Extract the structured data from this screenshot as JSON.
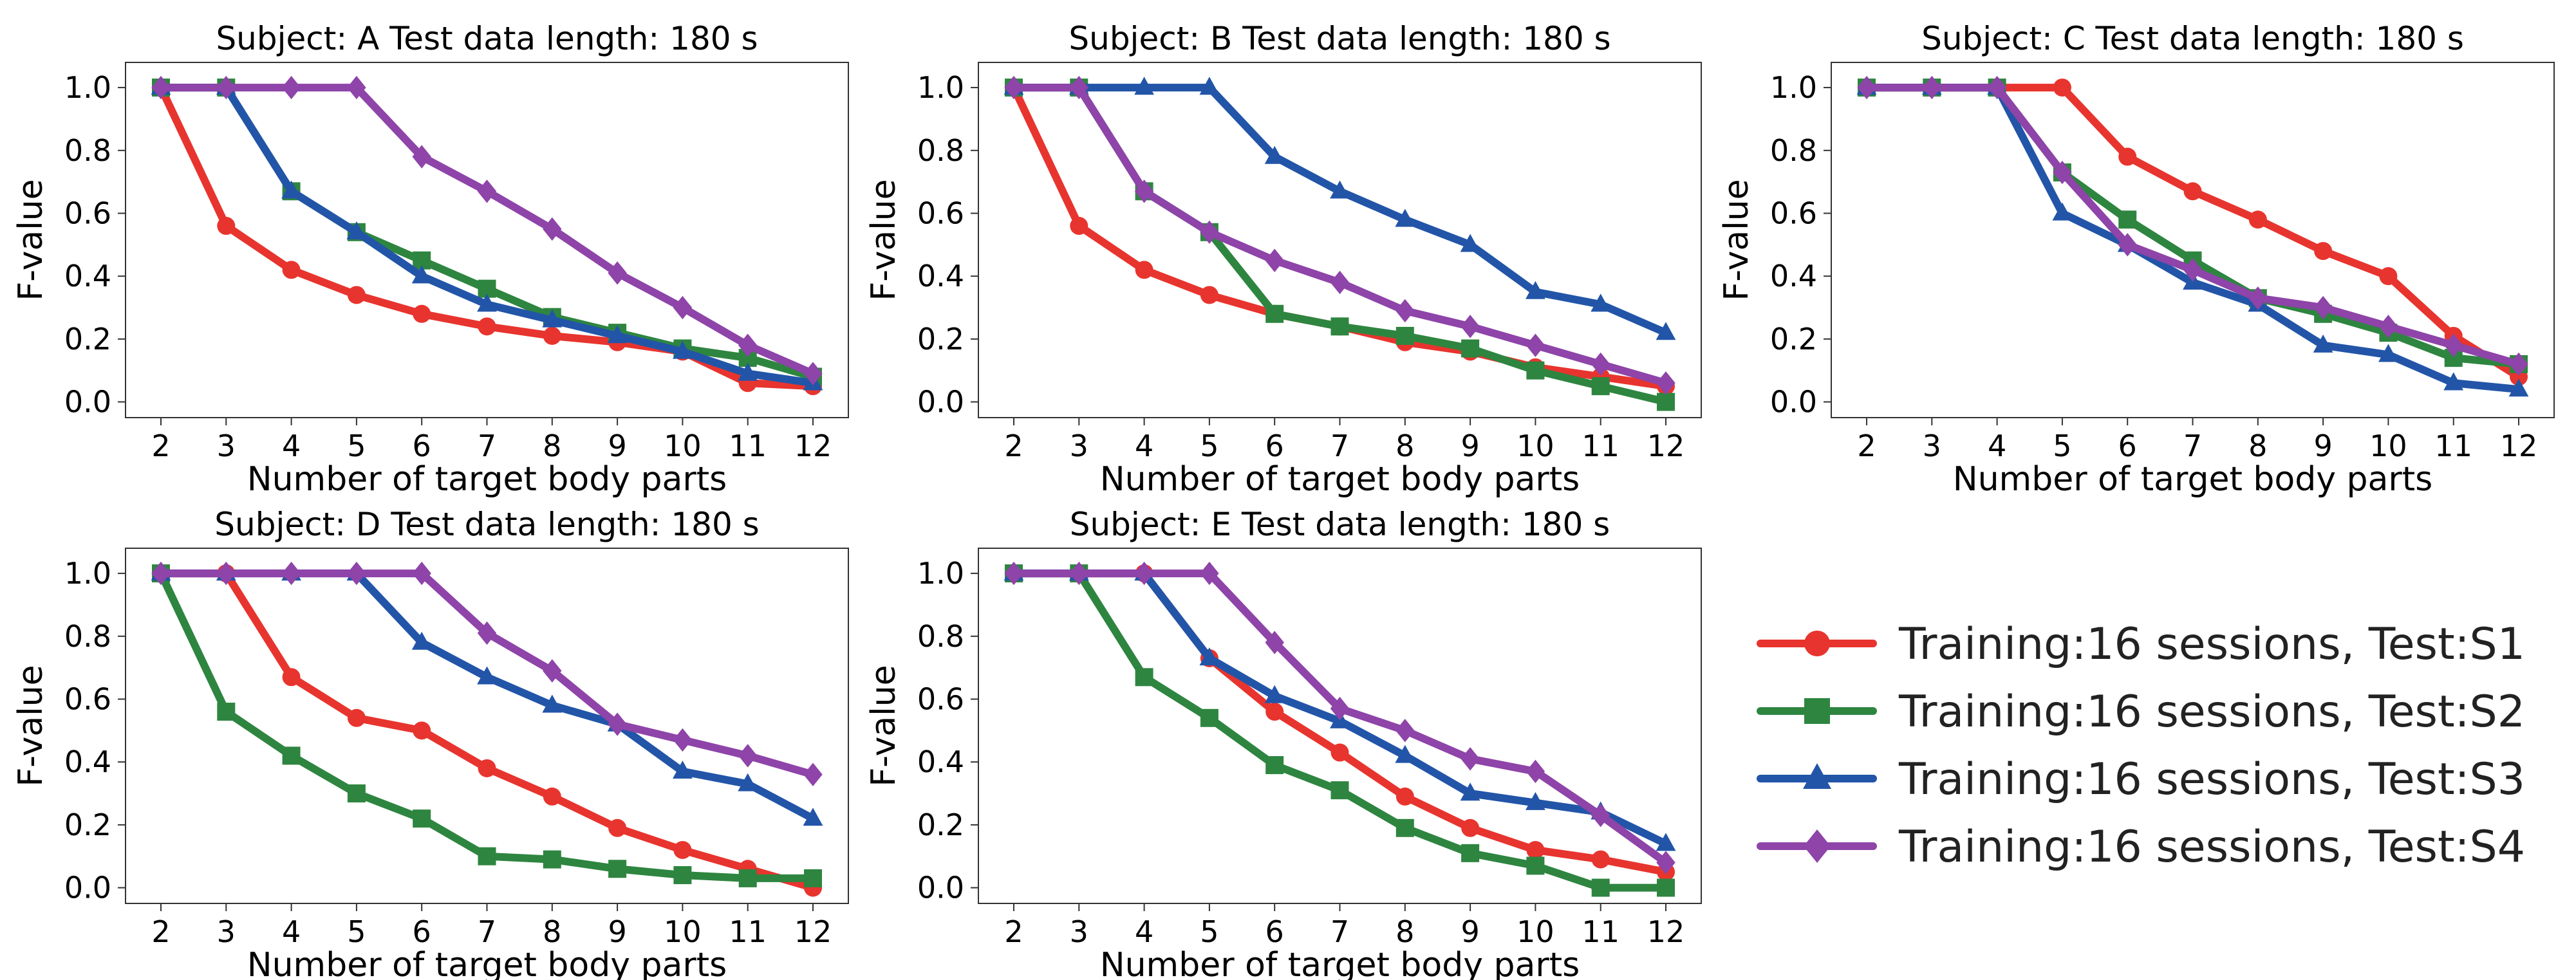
{
  "chart_data": [
    {
      "type": "line",
      "title": "Subject: A  Test data length: 180 s",
      "xlabel": "Number of target body parts",
      "ylabel": "F-value",
      "x": [
        2,
        3,
        4,
        5,
        6,
        7,
        8,
        9,
        10,
        11,
        12
      ],
      "ylim": [
        -0.05,
        1.08
      ],
      "yticks": [
        "0.0",
        "0.2",
        "0.4",
        "0.6",
        "0.8",
        "1.0"
      ],
      "xticks": [
        "2",
        "3",
        "4",
        "5",
        "6",
        "7",
        "8",
        "9",
        "10",
        "11",
        "12"
      ],
      "series": [
        {
          "name": "Training:16 sessions, Test:S1",
          "values": [
            1.0,
            0.56,
            0.42,
            0.34,
            0.28,
            0.24,
            0.21,
            0.19,
            0.16,
            0.06,
            0.05
          ]
        },
        {
          "name": "Training:16 sessions, Test:S2",
          "values": [
            1.0,
            1.0,
            0.67,
            0.54,
            0.45,
            0.36,
            0.27,
            0.22,
            0.17,
            0.14,
            0.08
          ]
        },
        {
          "name": "Training:16 sessions, Test:S3",
          "values": [
            1.0,
            1.0,
            0.67,
            0.54,
            0.4,
            0.31,
            0.26,
            0.21,
            0.16,
            0.09,
            0.06
          ]
        },
        {
          "name": "Training:16 sessions, Test:S4",
          "values": [
            1.0,
            1.0,
            1.0,
            1.0,
            0.78,
            0.67,
            0.55,
            0.41,
            0.3,
            0.18,
            0.09
          ]
        }
      ]
    },
    {
      "type": "line",
      "title": "Subject: B  Test data length: 180 s",
      "xlabel": "Number of target body parts",
      "ylabel": "F-value",
      "x": [
        2,
        3,
        4,
        5,
        6,
        7,
        8,
        9,
        10,
        11,
        12
      ],
      "ylim": [
        -0.05,
        1.08
      ],
      "yticks": [
        "0.0",
        "0.2",
        "0.4",
        "0.6",
        "0.8",
        "1.0"
      ],
      "xticks": [
        "2",
        "3",
        "4",
        "5",
        "6",
        "7",
        "8",
        "9",
        "10",
        "11",
        "12"
      ],
      "series": [
        {
          "name": "Training:16 sessions, Test:S1",
          "values": [
            1.0,
            0.56,
            0.42,
            0.34,
            0.28,
            0.24,
            0.19,
            0.16,
            0.11,
            0.08,
            0.05
          ]
        },
        {
          "name": "Training:16 sessions, Test:S2",
          "values": [
            1.0,
            1.0,
            0.67,
            0.54,
            0.28,
            0.24,
            0.21,
            0.17,
            0.1,
            0.05,
            0.0
          ]
        },
        {
          "name": "Training:16 sessions, Test:S3",
          "values": [
            1.0,
            1.0,
            1.0,
            1.0,
            0.78,
            0.67,
            0.58,
            0.5,
            0.35,
            0.31,
            0.22
          ]
        },
        {
          "name": "Training:16 sessions, Test:S4",
          "values": [
            1.0,
            1.0,
            0.67,
            0.54,
            0.45,
            0.38,
            0.29,
            0.24,
            0.18,
            0.12,
            0.06
          ]
        }
      ]
    },
    {
      "type": "line",
      "title": "Subject: C  Test data length: 180 s",
      "xlabel": "Number of target body parts",
      "ylabel": "F-value",
      "x": [
        2,
        3,
        4,
        5,
        6,
        7,
        8,
        9,
        10,
        11,
        12
      ],
      "ylim": [
        -0.05,
        1.08
      ],
      "yticks": [
        "0.0",
        "0.2",
        "0.4",
        "0.6",
        "0.8",
        "1.0"
      ],
      "xticks": [
        "2",
        "3",
        "4",
        "5",
        "6",
        "7",
        "8",
        "9",
        "10",
        "11",
        "12"
      ],
      "series": [
        {
          "name": "Training:16 sessions, Test:S1",
          "values": [
            1.0,
            1.0,
            1.0,
            1.0,
            0.78,
            0.67,
            0.58,
            0.48,
            0.4,
            0.21,
            0.08
          ]
        },
        {
          "name": "Training:16 sessions, Test:S2",
          "values": [
            1.0,
            1.0,
            1.0,
            0.73,
            0.58,
            0.45,
            0.33,
            0.28,
            0.22,
            0.14,
            0.12
          ]
        },
        {
          "name": "Training:16 sessions, Test:S3",
          "values": [
            1.0,
            1.0,
            1.0,
            0.6,
            0.5,
            0.38,
            0.31,
            0.18,
            0.15,
            0.06,
            0.04
          ]
        },
        {
          "name": "Training:16 sessions, Test:S4",
          "values": [
            1.0,
            1.0,
            1.0,
            0.73,
            0.5,
            0.42,
            0.33,
            0.3,
            0.24,
            0.18,
            0.12
          ]
        }
      ]
    },
    {
      "type": "line",
      "title": "Subject: D  Test data length: 180 s",
      "xlabel": "Number of target body parts",
      "ylabel": "F-value",
      "x": [
        2,
        3,
        4,
        5,
        6,
        7,
        8,
        9,
        10,
        11,
        12
      ],
      "ylim": [
        -0.05,
        1.08
      ],
      "yticks": [
        "0.0",
        "0.2",
        "0.4",
        "0.6",
        "0.8",
        "1.0"
      ],
      "xticks": [
        "2",
        "3",
        "4",
        "5",
        "6",
        "7",
        "8",
        "9",
        "10",
        "11",
        "12"
      ],
      "series": [
        {
          "name": "Training:16 sessions, Test:S1",
          "values": [
            1.0,
            1.0,
            0.67,
            0.54,
            0.5,
            0.38,
            0.29,
            0.19,
            0.12,
            0.06,
            0.0
          ]
        },
        {
          "name": "Training:16 sessions, Test:S2",
          "values": [
            1.0,
            0.56,
            0.42,
            0.3,
            0.22,
            0.1,
            0.09,
            0.06,
            0.04,
            0.03,
            0.03
          ]
        },
        {
          "name": "Training:16 sessions, Test:S3",
          "values": [
            1.0,
            1.0,
            1.0,
            1.0,
            0.78,
            0.67,
            0.58,
            0.52,
            0.37,
            0.33,
            0.22
          ]
        },
        {
          "name": "Training:16 sessions, Test:S4",
          "values": [
            1.0,
            1.0,
            1.0,
            1.0,
            1.0,
            0.81,
            0.69,
            0.52,
            0.47,
            0.42,
            0.36
          ]
        }
      ]
    },
    {
      "type": "line",
      "title": "Subject: E  Test data length: 180 s",
      "xlabel": "Number of target body parts",
      "ylabel": "F-value",
      "x": [
        2,
        3,
        4,
        5,
        6,
        7,
        8,
        9,
        10,
        11,
        12
      ],
      "ylim": [
        -0.05,
        1.08
      ],
      "yticks": [
        "0.0",
        "0.2",
        "0.4",
        "0.6",
        "0.8",
        "1.0"
      ],
      "xticks": [
        "2",
        "3",
        "4",
        "5",
        "6",
        "7",
        "8",
        "9",
        "10",
        "11",
        "12"
      ],
      "series": [
        {
          "name": "Training:16 sessions, Test:S1",
          "values": [
            1.0,
            1.0,
            1.0,
            0.73,
            0.56,
            0.43,
            0.29,
            0.19,
            0.12,
            0.09,
            0.05
          ]
        },
        {
          "name": "Training:16 sessions, Test:S2",
          "values": [
            1.0,
            1.0,
            0.67,
            0.54,
            0.39,
            0.31,
            0.19,
            0.11,
            0.07,
            0.0,
            0.0
          ]
        },
        {
          "name": "Training:16 sessions, Test:S3",
          "values": [
            1.0,
            1.0,
            1.0,
            0.73,
            0.61,
            0.53,
            0.42,
            0.3,
            0.27,
            0.24,
            0.14
          ]
        },
        {
          "name": "Training:16 sessions, Test:S4",
          "values": [
            1.0,
            1.0,
            1.0,
            1.0,
            0.78,
            0.57,
            0.5,
            0.41,
            0.37,
            0.23,
            0.08
          ]
        }
      ]
    }
  ],
  "legend": {
    "placement": "lower-right",
    "entries": [
      {
        "label": "Training:16 sessions, Test:S1",
        "color": "#e8342e",
        "marker": "circle"
      },
      {
        "label": "Training:16 sessions, Test:S2",
        "color": "#2e8540",
        "marker": "square"
      },
      {
        "label": "Training:16 sessions, Test:S3",
        "color": "#2255a8",
        "marker": "triangle"
      },
      {
        "label": "Training:16 sessions, Test:S4",
        "color": "#8e44a8",
        "marker": "diamond"
      }
    ]
  }
}
